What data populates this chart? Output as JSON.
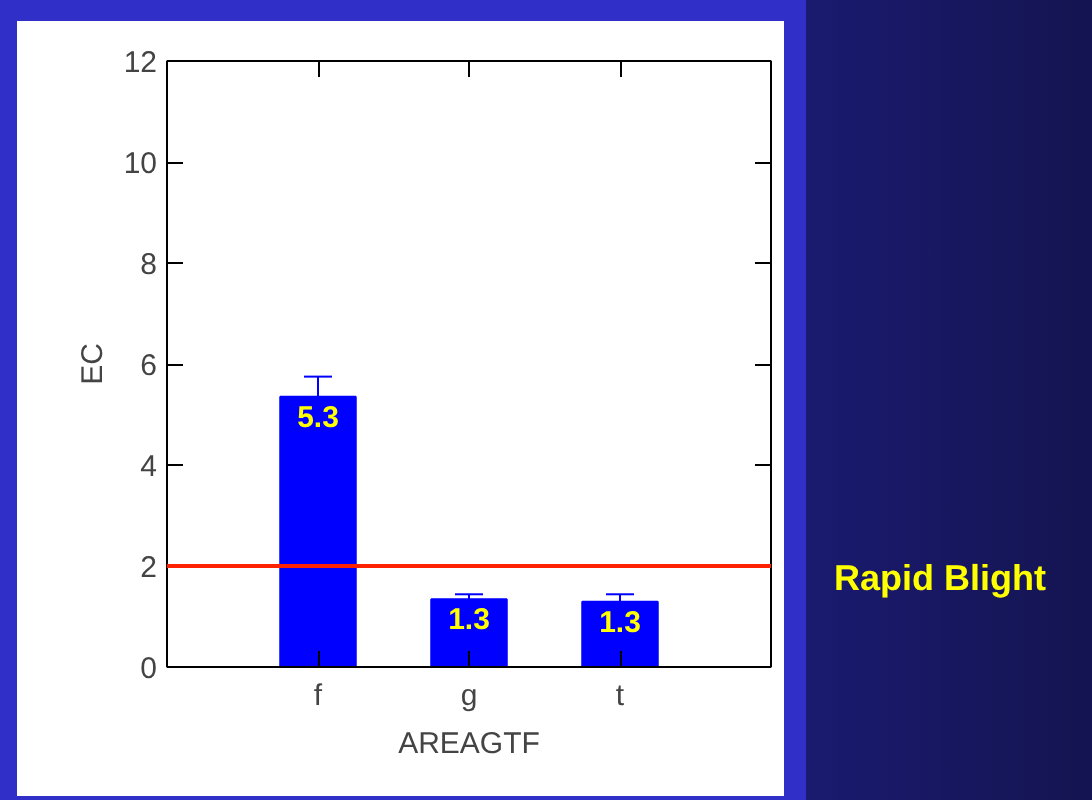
{
  "chart_data": {
    "type": "bar",
    "xlabel": "AREAGTF",
    "ylabel": "EC",
    "categories": [
      "f",
      "g",
      "t"
    ],
    "values": [
      5.35,
      1.34,
      1.29
    ],
    "value_labels": [
      "5.3",
      "1.3",
      "1.3"
    ],
    "errors": [
      [
        5.35,
        5.75
      ],
      [
        1.34,
        1.44
      ],
      [
        1.29,
        1.44
      ]
    ],
    "color": "#0000ff",
    "ylim": [
      0,
      12
    ],
    "yticks": [
      0,
      2,
      4,
      6,
      8,
      10,
      12
    ],
    "ref_lines": [
      {
        "axis": "y",
        "value": 2,
        "label": "Rapid Blight",
        "color": "#ff2200"
      }
    ],
    "grid": false
  }
}
